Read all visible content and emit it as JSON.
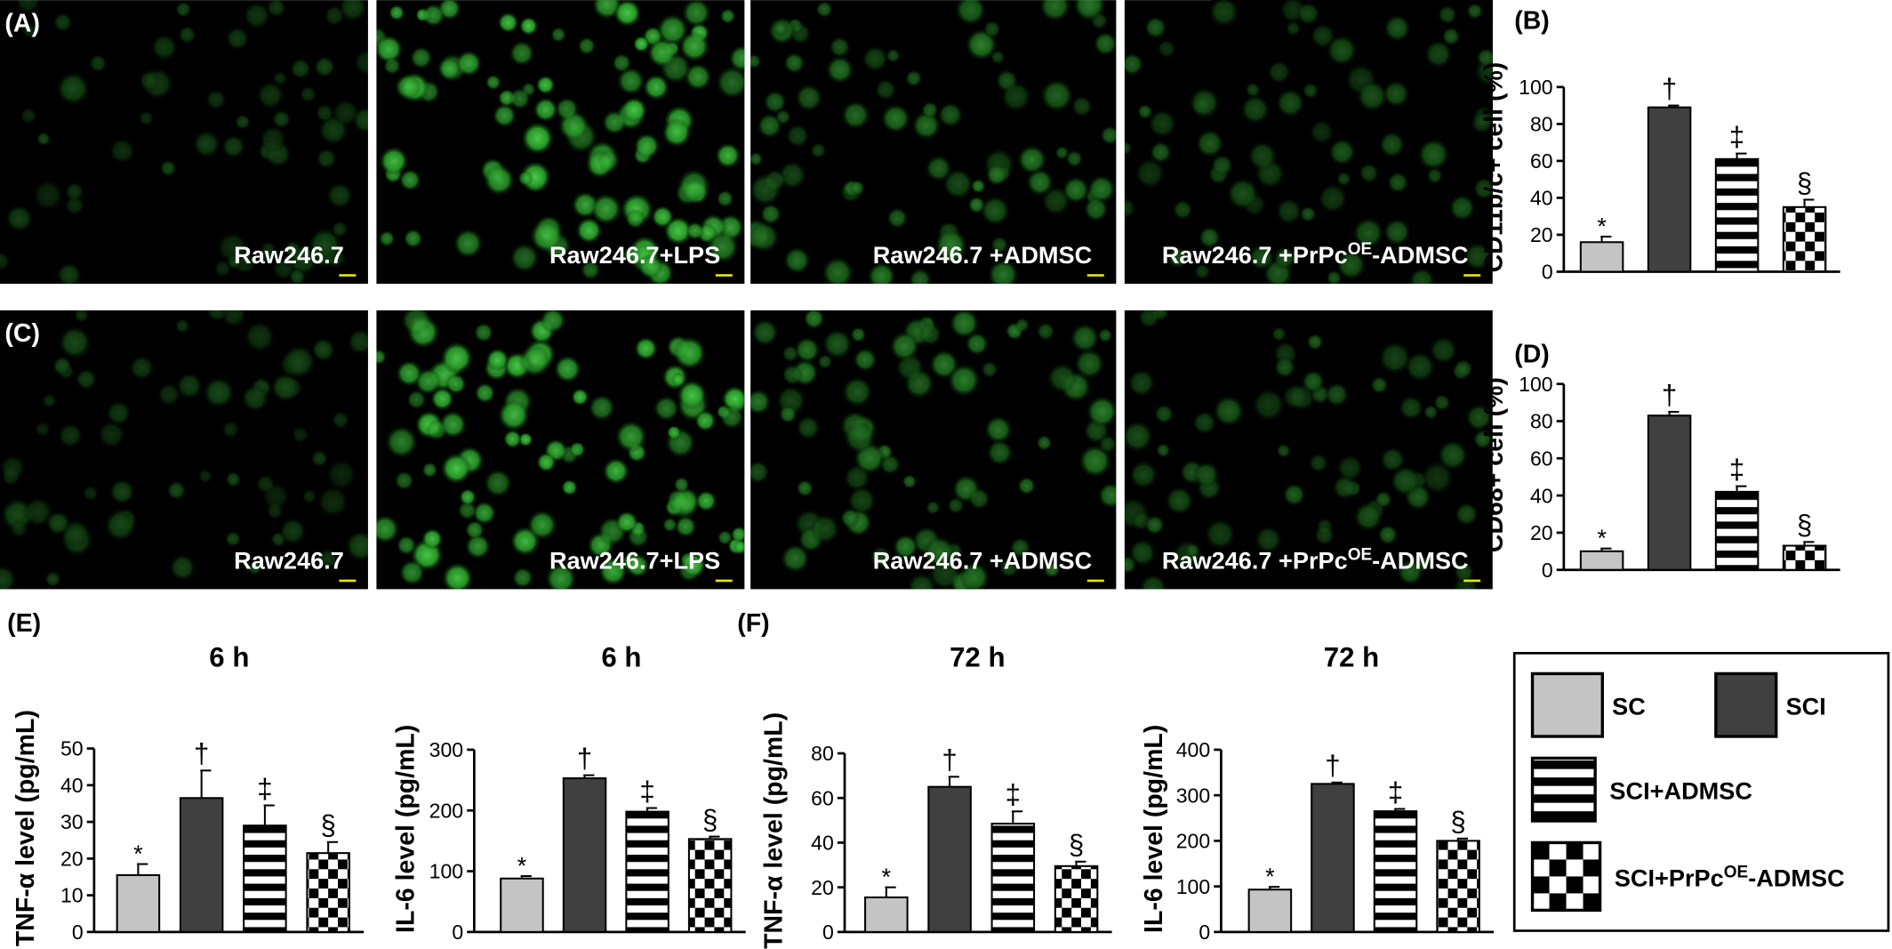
{
  "images": {
    "rows": [
      {
        "panel": "(A)",
        "labels": [
          "Raw246.7",
          "Raw246.7+LPS",
          "Raw246.7 +ADMSC",
          {
            "parts": [
              "Raw246.7 +PrPc",
              "OE",
              "-ADMSC"
            ]
          }
        ]
      },
      {
        "panel": "(C)",
        "labels": [
          "Raw246.7",
          "Raw246.7+LPS",
          "Raw246.7 +ADMSC",
          {
            "parts": [
              "Raw246.7 +PrPc",
              "OE",
              "-ADMSC"
            ]
          }
        ]
      }
    ]
  },
  "legend": {
    "items": [
      {
        "name": "SC",
        "pattern": "solid",
        "color": "#c4c4c4"
      },
      {
        "name": "SCI",
        "pattern": "solid",
        "color": "#404040"
      },
      {
        "name": "SCI+ADMSC",
        "pattern": "stripes",
        "color": "#000000"
      },
      {
        "name": {
          "parts": [
            "SCI+PrPc",
            "OE",
            "-ADMSC"
          ]
        },
        "pattern": "checker",
        "color": "#000000"
      }
    ]
  },
  "chart_data": [
    {
      "type": "bar",
      "panel": "(B)",
      "ylabel": "CD11b/c+ cell (%)",
      "values": [
        16,
        89,
        61,
        35
      ],
      "errors": [
        3,
        1,
        3,
        4
      ],
      "annotations": [
        "*",
        "†",
        "‡",
        "§"
      ],
      "ylim": [
        0,
        100
      ],
      "yticks": [
        0,
        20,
        40,
        60,
        80,
        100
      ]
    },
    {
      "type": "bar",
      "panel": "(D)",
      "ylabel": "CD68+ cell (%)",
      "values": [
        10,
        83,
        42,
        13
      ],
      "errors": [
        1.5,
        2,
        3,
        2
      ],
      "annotations": [
        "*",
        "†",
        "‡",
        "§"
      ],
      "ylim": [
        0,
        100
      ],
      "yticks": [
        0,
        20,
        40,
        60,
        80,
        100
      ]
    },
    {
      "type": "bar",
      "panel": "(E)",
      "title": "6 h",
      "ylabel": "TNF-α level (pg/mL)",
      "values": [
        15.5,
        36.5,
        29,
        21.5
      ],
      "errors": [
        3,
        7.5,
        5.5,
        3
      ],
      "annotations": [
        "*",
        "†",
        "‡",
        "§"
      ],
      "ylim": [
        0,
        50
      ],
      "yticks": [
        0,
        10,
        20,
        30,
        40,
        50
      ]
    },
    {
      "type": "bar",
      "title": "6 h",
      "ylabel": "IL-6 level (pg/mL)",
      "values": [
        88,
        253,
        198,
        153
      ],
      "errors": [
        4,
        5,
        6,
        4
      ],
      "annotations": [
        "*",
        "†",
        "‡",
        "§"
      ],
      "ylim": [
        0,
        300
      ],
      "yticks": [
        0,
        100,
        200,
        300
      ]
    },
    {
      "type": "bar",
      "panel": "(F)",
      "title": "72 h",
      "ylabel": "TNF-α level (pg/mL)",
      "values": [
        15.5,
        65,
        48.5,
        29.5
      ],
      "errors": [
        4.5,
        4.5,
        5.5,
        2
      ],
      "annotations": [
        "*",
        "†",
        "‡",
        "§"
      ],
      "ylim": [
        0,
        80
      ],
      "yticks": [
        0,
        20,
        40,
        60,
        80
      ]
    },
    {
      "type": "bar",
      "title": "72 h",
      "ylabel": "IL-6 level (pg/mL)",
      "values": [
        93,
        325,
        265,
        200
      ],
      "errors": [
        6,
        3,
        5,
        5
      ],
      "annotations": [
        "*",
        "†",
        "‡",
        "§"
      ],
      "ylim": [
        0,
        400
      ],
      "yticks": [
        0,
        100,
        200,
        300,
        400
      ]
    }
  ]
}
